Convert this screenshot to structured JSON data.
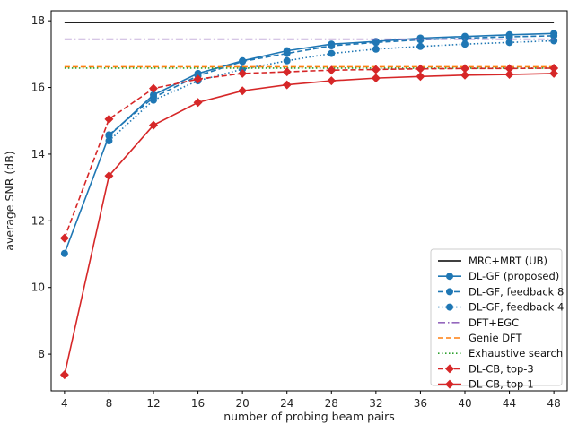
{
  "chart_data": {
    "type": "line",
    "xlabel": "number of probing beam pairs",
    "ylabel": "average SNR (dB)",
    "xlim": [
      2.8,
      49.2
    ],
    "ylim": [
      6.9,
      18.3
    ],
    "x_ticks": [
      4,
      8,
      12,
      16,
      20,
      24,
      28,
      32,
      36,
      40,
      44,
      48
    ],
    "y_ticks": [
      8,
      10,
      12,
      14,
      16,
      18
    ],
    "grid": false,
    "legend_position": "bottom-right",
    "x": [
      4,
      8,
      12,
      16,
      20,
      24,
      28,
      32,
      36,
      40,
      44,
      48
    ],
    "series": [
      {
        "name": "MRC+MRT (UB)",
        "style": "solid",
        "color": "#000000",
        "marker": "none",
        "values": [
          17.95,
          17.95,
          17.95,
          17.95,
          17.95,
          17.95,
          17.95,
          17.95,
          17.95,
          17.95,
          17.95,
          17.95
        ]
      },
      {
        "name": "DL-GF (proposed)",
        "style": "solid",
        "color": "#1f77b4",
        "marker": "circle",
        "values": [
          11.02,
          14.55,
          15.78,
          16.42,
          16.8,
          17.1,
          17.3,
          17.38,
          17.48,
          17.53,
          17.58,
          17.62
        ]
      },
      {
        "name": "DL-GF, feedback 8",
        "style": "dashed",
        "color": "#1f77b4",
        "marker": "circle",
        "values": [
          null,
          14.58,
          15.7,
          16.35,
          16.78,
          17.02,
          17.25,
          17.35,
          17.43,
          17.48,
          17.52,
          17.55
        ]
      },
      {
        "name": "DL-GF, feedback 4",
        "style": "dotted",
        "color": "#1f77b4",
        "marker": "circle",
        "values": [
          null,
          14.4,
          15.62,
          16.2,
          16.55,
          16.8,
          17.02,
          17.15,
          17.23,
          17.3,
          17.35,
          17.4
        ]
      },
      {
        "name": "DFT+EGC",
        "style": "dashdot",
        "color": "#9467bd",
        "marker": "none",
        "values": [
          17.45,
          17.45,
          17.45,
          17.45,
          17.45,
          17.45,
          17.45,
          17.45,
          17.45,
          17.45,
          17.45,
          17.45
        ]
      },
      {
        "name": "Genie DFT",
        "style": "dashed",
        "color": "#ff7f0e",
        "marker": "none",
        "values": [
          16.62,
          16.62,
          16.62,
          16.62,
          16.62,
          16.62,
          16.62,
          16.62,
          16.62,
          16.62,
          16.62,
          16.62
        ]
      },
      {
        "name": "Exhaustive search",
        "style": "dotted",
        "color": "#2ca02c",
        "marker": "none",
        "values": [
          16.58,
          16.58,
          16.58,
          16.58,
          16.58,
          16.58,
          16.58,
          16.58,
          16.58,
          16.58,
          16.58,
          16.58
        ]
      },
      {
        "name": "DL-CB, top-3",
        "style": "dashed",
        "color": "#d62728",
        "marker": "diamond",
        "values": [
          11.48,
          15.05,
          15.97,
          16.25,
          16.42,
          16.47,
          16.52,
          16.54,
          16.56,
          16.57,
          16.57,
          16.58
        ]
      },
      {
        "name": "DL-CB, top-1",
        "style": "solid",
        "color": "#d62728",
        "marker": "diamond",
        "values": [
          7.38,
          13.35,
          14.87,
          15.55,
          15.9,
          16.08,
          16.2,
          16.28,
          16.33,
          16.37,
          16.39,
          16.42
        ]
      }
    ]
  }
}
